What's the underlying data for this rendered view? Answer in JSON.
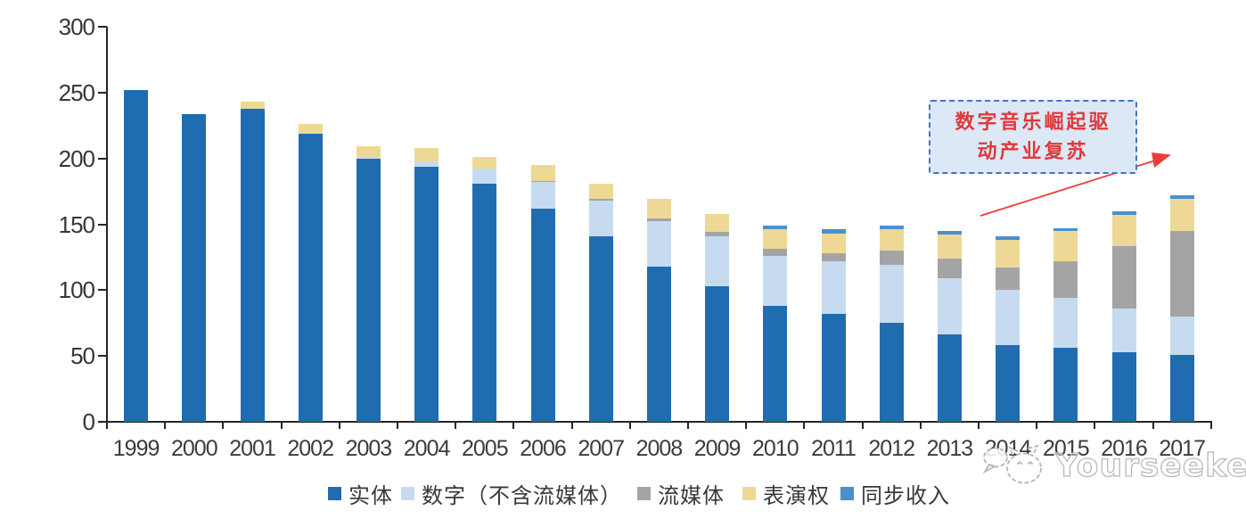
{
  "chart_data": {
    "type": "bar",
    "stacked": true,
    "title": "",
    "xlabel": "",
    "ylabel": "",
    "categories": [
      "1999",
      "2000",
      "2001",
      "2002",
      "2003",
      "2004",
      "2005",
      "2006",
      "2007",
      "2008",
      "2009",
      "2010",
      "2011",
      "2012",
      "2013",
      "2014",
      "2015",
      "2016",
      "2017"
    ],
    "series": [
      {
        "name": "实体",
        "color": "#1F6DB0",
        "values": [
          252,
          234,
          238,
          219,
          200,
          194,
          181,
          162,
          141,
          118,
          103,
          88,
          82,
          75,
          66,
          58,
          56,
          53,
          51
        ]
      },
      {
        "name": "数字（不含流媒体）",
        "color": "#C7DBF0",
        "values": [
          0,
          0,
          0,
          0,
          1,
          4,
          11,
          20,
          27,
          34,
          38,
          38,
          40,
          44,
          43,
          42,
          38,
          33,
          29
        ]
      },
      {
        "name": "流媒体",
        "color": "#A5A4A4",
        "values": [
          0,
          0,
          0,
          0,
          0,
          0,
          0,
          1,
          1,
          2,
          3,
          5,
          6,
          11,
          15,
          17,
          28,
          47,
          65
        ]
      },
      {
        "name": "表演权",
        "color": "#EDD995",
        "values": [
          0,
          0,
          5,
          7,
          8,
          10,
          9,
          12,
          12,
          15,
          14,
          15,
          15,
          16,
          18,
          21,
          23,
          24,
          24
        ]
      },
      {
        "name": "同步收入",
        "color": "#4A90CE",
        "values": [
          0,
          0,
          0,
          0,
          0,
          0,
          0,
          0,
          0,
          0,
          0,
          3,
          3,
          3,
          3,
          3,
          2,
          3,
          3
        ]
      }
    ],
    "totals": [
      252,
      234,
      243,
      226,
      209,
      208,
      201,
      195,
      181,
      169,
      158,
      149,
      146,
      149,
      145,
      141,
      147,
      160,
      172
    ],
    "ylim": [
      0,
      300
    ],
    "yticks": [
      0,
      50,
      100,
      150,
      200,
      250,
      300
    ],
    "grid": false,
    "legend_position": "bottom"
  },
  "annotation": {
    "text": "数字音乐崛起驱动产业复苏",
    "lines": [
      "数字音乐崛起驱",
      "动产业复苏"
    ]
  },
  "watermark": {
    "text": "Yourseeker"
  },
  "colors": {
    "physical": "#1F6DB0",
    "digital": "#C7DBF0",
    "streaming": "#A5A4A4",
    "performance": "#EDD995",
    "sync": "#4A90CE",
    "axis": "#262626",
    "tick_label": "#363636",
    "annotation_text": "#E0383C",
    "annotation_border": "#4472C4",
    "annotation_bg": "#DCE8F6",
    "arrow": "#ED3B3B",
    "watermark": "#B9B9B9"
  }
}
